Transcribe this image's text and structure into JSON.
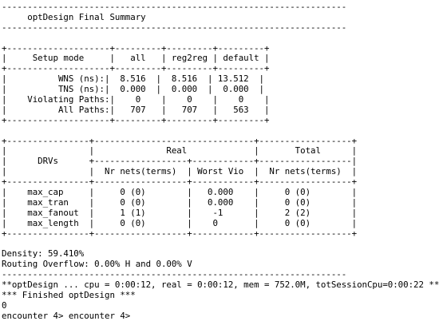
{
  "terminal": {
    "lines": [
      "-------------------------------------------------------------------",
      "     optDesign Final Summary",
      "-------------------------------------------------------------------",
      "",
      "+--------------------+---------+---------+---------+",
      "|     Setup mode     |   all   | reg2reg | default |",
      "+--------------------+---------+---------+---------+",
      "|          WNS (ns):|  8.516  |  8.516  | 13.512  |",
      "|          TNS (ns):|  0.000  |  0.000  |  0.000  |",
      "|    Violating Paths:|    0    |    0    |    0    |",
      "|          All Paths:|   707   |   707   |   563   |",
      "+--------------------+---------+---------+---------+",
      "",
      "+----------------+-------------------------------+------------------+",
      "|                |              Real             |       Total      |",
      "|      DRVs      +------------------+------------+------------------|",
      "|                |  Nr nets(terms)  | Worst Vio  |  Nr nets(terms)  |",
      "+----------------+------------------+------------+------------------+",
      "|    max_cap     |     0 (0)        |   0.000    |     0 (0)        |",
      "|    max_tran    |     0 (0)        |   0.000    |     0 (0)        |",
      "|    max_fanout  |     1 (1)        |    -1      |     2 (2)        |",
      "|    max_length  |     0 (0)        |    0       |     0 (0)        |",
      "+----------------+------------------+------------+------------------+",
      "",
      "Density: 59.410%",
      "Routing Overflow: 0.00% H and 0.00% V",
      "-------------------------------------------------------------------",
      "**optDesign ... cpu = 0:00:12, real = 0:00:12, mem = 752.0M, totSessionCpu=0:00:22 **",
      "*** Finished optDesign ***",
      "0",
      "encounter 4> encounter 4>"
    ]
  }
}
